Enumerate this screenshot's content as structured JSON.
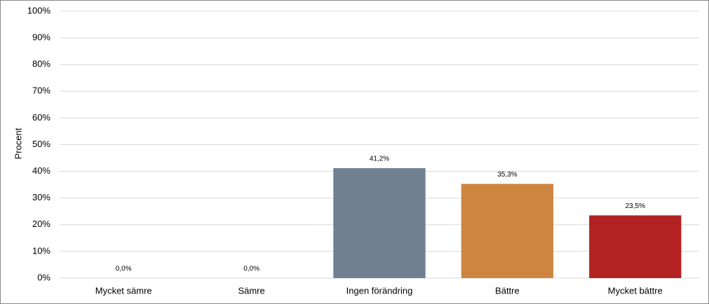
{
  "chart_data": {
    "type": "bar",
    "y_label": "Procent",
    "categories": [
      "Mycket sämre",
      "Sämre",
      "Ingen förändring",
      "Bättre",
      "Mycket bättre"
    ],
    "values": [
      0,
      0,
      41.2,
      35.3,
      23.5
    ],
    "value_labels": [
      "0,0%",
      "0,0%",
      "41,2%",
      "35,3%",
      "23,5%"
    ],
    "colors": [
      "#708090",
      "#708090",
      "#708090",
      "#cd853f",
      "#b22222"
    ],
    "ylim": [
      0,
      100
    ],
    "yticks": [
      {
        "value": 0,
        "label": "0%"
      },
      {
        "value": 10,
        "label": "10%"
      },
      {
        "value": 20,
        "label": "20%"
      },
      {
        "value": 30,
        "label": "30%"
      },
      {
        "value": 40,
        "label": "40%"
      },
      {
        "value": 50,
        "label": "50%"
      },
      {
        "value": 60,
        "label": "60%"
      },
      {
        "value": 70,
        "label": "70%"
      },
      {
        "value": 80,
        "label": "80%"
      },
      {
        "value": 90,
        "label": "90%"
      },
      {
        "value": 100,
        "label": "100%"
      }
    ],
    "grid": true
  }
}
